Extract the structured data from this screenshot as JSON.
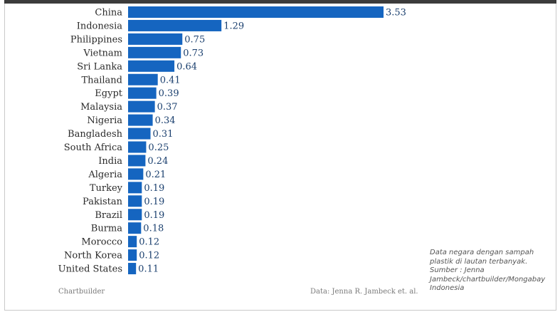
{
  "chart_data": {
    "type": "bar",
    "orientation": "horizontal",
    "categories": [
      "China",
      "Indonesia",
      "Philippines",
      "Vietnam",
      "Sri Lanka",
      "Thailand",
      "Egypt",
      "Malaysia",
      "Nigeria",
      "Bangladesh",
      "South Africa",
      "India",
      "Algeria",
      "Turkey",
      "Pakistan",
      "Brazil",
      "Burma",
      "Morocco",
      "North Korea",
      "United States"
    ],
    "values": [
      3.53,
      1.29,
      0.75,
      0.73,
      0.64,
      0.41,
      0.39,
      0.37,
      0.34,
      0.31,
      0.25,
      0.24,
      0.21,
      0.19,
      0.19,
      0.19,
      0.18,
      0.12,
      0.12,
      0.11
    ],
    "value_labels": [
      "3.53",
      "1.29",
      "0.75",
      "0.73",
      "0.64",
      "0.41",
      "0.39",
      "0.37",
      "0.34",
      "0.31",
      "0.25",
      "0.24",
      "0.21",
      "0.19",
      "0.19",
      "0.19",
      "0.18",
      "0.12",
      "0.12",
      "0.11"
    ],
    "bar_color": "#1565c0",
    "grid": false,
    "legend": "none"
  },
  "footer": {
    "source_brand": "Chartbuilder",
    "data_credit": "Data: Jenna R. Jambeck et. al."
  },
  "caption": {
    "lines": [
      "Data negara dengan sampah",
      "plastik di lautan terbanyak.",
      "Sumber : Jenna",
      "Jambeck/chartbuilder/Mongabay",
      "Indonesia"
    ]
  }
}
